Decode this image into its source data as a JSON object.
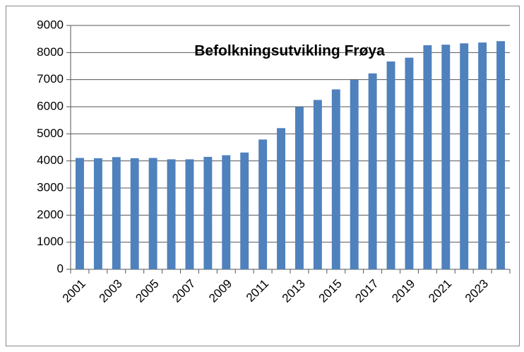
{
  "chart_data": {
    "type": "bar",
    "title": "Befolkningsutvikling Frøya",
    "categories": [
      "2001",
      null,
      "2003",
      null,
      "2005",
      null,
      "2007",
      null,
      "2009",
      null,
      "2011",
      null,
      "2013",
      null,
      "2015",
      null,
      "2017",
      null,
      "2019",
      null,
      "2021",
      null,
      "2023",
      null
    ],
    "values": [
      4110,
      4100,
      4140,
      4100,
      4110,
      4060,
      4060,
      4150,
      4210,
      4310,
      4790,
      5210,
      5990,
      6250,
      6640,
      6990,
      7230,
      7670,
      7810,
      8270,
      8290,
      8340,
      8370,
      8420
    ],
    "color": "#4f81bd",
    "ylim": [
      0,
      9000
    ],
    "yticks": [
      0,
      1000,
      2000,
      3000,
      4000,
      5000,
      6000,
      7000,
      8000,
      9000
    ],
    "grid": true
  }
}
